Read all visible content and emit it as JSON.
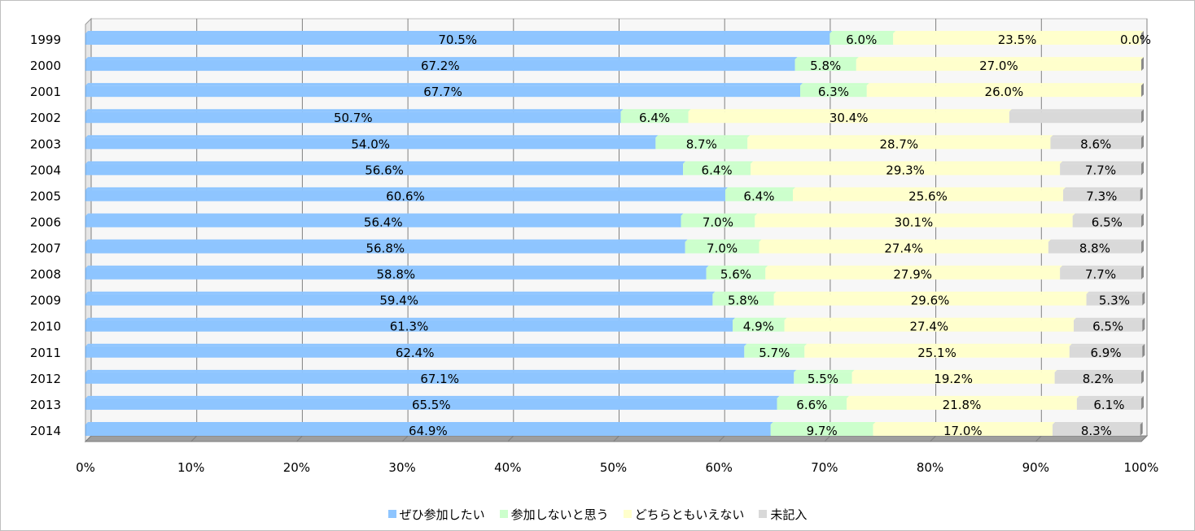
{
  "chart_data": {
    "type": "bar",
    "orientation": "horizontal",
    "stacked": "percent",
    "grid": true,
    "legend_position": "bottom",
    "categories": [
      "1999",
      "2000",
      "2001",
      "2002",
      "2003",
      "2004",
      "2005",
      "2006",
      "2007",
      "2008",
      "2009",
      "2010",
      "2011",
      "2012",
      "2013",
      "2014"
    ],
    "xlim": [
      0,
      100
    ],
    "x_ticks": [
      "0%",
      "10%",
      "20%",
      "30%",
      "40%",
      "50%",
      "60%",
      "70%",
      "80%",
      "90%",
      "100%"
    ],
    "series": [
      {
        "name": "ぜひ参加したい",
        "color": "#8ec5ff",
        "values": [
          70.5,
          67.2,
          67.7,
          50.7,
          54.0,
          56.6,
          60.6,
          56.4,
          56.8,
          58.8,
          59.4,
          61.3,
          62.4,
          67.1,
          65.5,
          64.9
        ],
        "labels": [
          "70.5%",
          "67.2%",
          "67.7%",
          "50.7%",
          "54.0%",
          "56.6%",
          "60.6%",
          "56.4%",
          "56.8%",
          "58.8%",
          "59.4%",
          "61.3%",
          "62.4%",
          "67.1%",
          "65.5%",
          "64.9%"
        ]
      },
      {
        "name": "参加しないと思う",
        "color": "#ccffcc",
        "values": [
          6.0,
          5.8,
          6.3,
          6.4,
          8.7,
          6.4,
          6.4,
          7.0,
          7.0,
          5.6,
          5.8,
          4.9,
          5.7,
          5.5,
          6.6,
          9.7
        ],
        "labels": [
          "6.0%",
          "5.8%",
          "6.3%",
          "6.4%",
          "8.7%",
          "6.4%",
          "6.4%",
          "7.0%",
          "7.0%",
          "5.6%",
          "5.8%",
          "4.9%",
          "5.7%",
          "5.5%",
          "6.6%",
          "9.7%"
        ]
      },
      {
        "name": "どちらともいえない",
        "color": "#ffffcc",
        "values": [
          23.5,
          27.0,
          26.0,
          30.4,
          28.7,
          29.3,
          25.6,
          30.1,
          27.4,
          27.9,
          29.6,
          27.4,
          25.1,
          19.2,
          21.8,
          17.0
        ],
        "labels": [
          "23.5%",
          "27.0%",
          "26.0%",
          "30.4%",
          "28.7%",
          "29.3%",
          "25.6%",
          "30.1%",
          "27.4%",
          "27.9%",
          "29.6%",
          "27.4%",
          "25.1%",
          "19.2%",
          "21.8%",
          "17.0%"
        ]
      },
      {
        "name": "未記入",
        "color": "#d9d9d9",
        "values": [
          0.0,
          0.0,
          0.0,
          12.5,
          8.6,
          7.7,
          7.3,
          6.5,
          8.8,
          7.7,
          5.3,
          6.5,
          6.9,
          8.2,
          6.1,
          8.3
        ],
        "labels": [
          "0.0%",
          "",
          "",
          "",
          "8.6%",
          "7.7%",
          "7.3%",
          "6.5%",
          "8.8%",
          "7.7%",
          "5.3%",
          "6.5%",
          "6.9%",
          "8.2%",
          "6.1%",
          "8.3%"
        ]
      }
    ]
  }
}
